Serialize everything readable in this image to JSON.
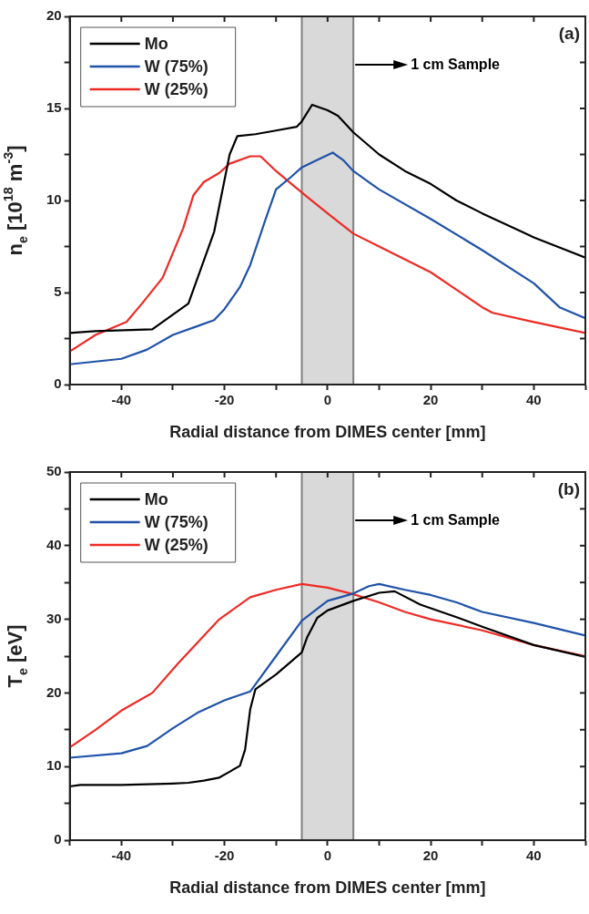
{
  "chart_data": [
    {
      "type": "line",
      "xlabel": "Radial distance from DIMES center [mm]",
      "ylabel": "n$_{e}$ [10$^{18}$ m$^{-3}$]",
      "annotations": [
        "(a)"
      ],
      "legend": "top left",
      "grid": false,
      "marker": "none",
      "line_style": "solid",
      "xlim": [
        -50,
        50
      ],
      "xticks": [
        {
          "value": -50,
          "label": null
        },
        -40,
        {
          "value": -30,
          "label": null
        },
        -20,
        {
          "value": -10,
          "label": null
        },
        0,
        {
          "value": 10,
          "label": null
        },
        20,
        {
          "value": 30,
          "label": null
        },
        40,
        {
          "value": 50,
          "label": null
        }
      ],
      "ylim": [
        0,
        20
      ],
      "yticks": [
        0,
        {
          "value": 2.5,
          "label": null
        },
        5,
        {
          "value": 7.5,
          "label": null
        },
        10,
        {
          "value": 12.5,
          "label": null
        },
        15,
        {
          "value": 17.5,
          "label": null
        },
        20
      ],
      "bands": [
        {
          "axis": "x",
          "from": -5,
          "to": 5,
          "label": "1 cm Sample",
          "color": "#808080"
        }
      ],
      "series": [
        {
          "name": "Mo",
          "color": "#000000",
          "x": [
            -50,
            -45,
            -34,
            -27,
            -22,
            -19,
            -17.5,
            -14,
            -10,
            -6,
            -5,
            -3,
            0,
            2,
            5,
            10,
            15,
            20,
            25,
            30,
            40,
            50
          ],
          "values": [
            2.8,
            2.9,
            3.0,
            4.4,
            8.3,
            12.5,
            13.5,
            13.6,
            13.8,
            14.0,
            14.3,
            15.2,
            14.9,
            14.6,
            13.7,
            12.5,
            11.6,
            10.9,
            10.0,
            9.3,
            8.0,
            6.9
          ]
        },
        {
          "name": "W (75%)",
          "color": "#1f52a8",
          "x": [
            -50,
            -40,
            -35,
            -30,
            -25,
            -22,
            -20,
            -17,
            -15,
            -12,
            -10,
            -7,
            -5,
            -2,
            1,
            3,
            5,
            8,
            10,
            20,
            30,
            40,
            45,
            50
          ],
          "values": [
            1.1,
            1.4,
            1.9,
            2.7,
            3.2,
            3.5,
            4.1,
            5.3,
            6.5,
            9.0,
            10.6,
            11.3,
            11.8,
            12.2,
            12.6,
            12.2,
            11.6,
            11.0,
            10.6,
            9.0,
            7.3,
            5.5,
            4.2,
            3.6
          ]
        },
        {
          "name": "W (25%)",
          "color": "#ee2a24",
          "x": [
            -50,
            -45,
            -39,
            -36,
            -32,
            -28,
            -26,
            -24,
            -21,
            -19,
            -15,
            -13,
            -10,
            -7,
            -4,
            0,
            5,
            10,
            20,
            30,
            32,
            40,
            50
          ],
          "values": [
            1.8,
            2.7,
            3.4,
            4.4,
            5.8,
            8.5,
            10.3,
            11.0,
            11.5,
            12.0,
            12.4,
            12.4,
            11.6,
            10.9,
            10.2,
            9.3,
            8.2,
            7.5,
            6.1,
            4.2,
            3.9,
            3.4,
            2.8
          ]
        }
      ]
    },
    {
      "type": "line",
      "xlabel": "Radial distance from DIMES center [mm]",
      "ylabel": "T$_{e}$ [eV]",
      "annotations": [
        "(b)"
      ],
      "legend": "top left",
      "grid": false,
      "marker": "none",
      "line_style": "solid",
      "xlim": [
        -50,
        50
      ],
      "xticks": [
        {
          "value": -50,
          "label": null
        },
        -40,
        {
          "value": -30,
          "label": null
        },
        -20,
        {
          "value": -10,
          "label": null
        },
        0,
        {
          "value": 10,
          "label": null
        },
        20,
        {
          "value": 30,
          "label": null
        },
        40,
        {
          "value": 50,
          "label": null
        }
      ],
      "ylim": [
        0,
        50
      ],
      "yticks": [
        0,
        {
          "value": 5,
          "label": null
        },
        10,
        {
          "value": 15,
          "label": null
        },
        20,
        {
          "value": 25,
          "label": null
        },
        30,
        {
          "value": 35,
          "label": null
        },
        40,
        {
          "value": 45,
          "label": null
        },
        50
      ],
      "bands": [
        {
          "axis": "x",
          "from": -5,
          "to": 5,
          "label": "1 cm Sample",
          "color": "#808080"
        }
      ],
      "series": [
        {
          "name": "Mo",
          "color": "#000000",
          "x": [
            -50,
            -48,
            -40,
            -30,
            -27,
            -24,
            -21,
            -19,
            -17,
            -16,
            -15,
            -14,
            -10,
            -7,
            -5,
            -4,
            -2,
            0,
            5,
            10,
            13,
            18,
            25,
            30,
            40,
            50
          ],
          "values": [
            7.3,
            7.5,
            7.5,
            7.7,
            7.8,
            8.1,
            8.5,
            9.3,
            10.1,
            12.3,
            17.8,
            20.5,
            22.5,
            24.3,
            25.5,
            27.5,
            30.2,
            31.2,
            32.5,
            33.6,
            33.8,
            32,
            30.3,
            29,
            26.5,
            24.9
          ]
        },
        {
          "name": "W (75%)",
          "color": "#1f52a8",
          "x": [
            -50,
            -40,
            -35,
            -30,
            -25,
            -20,
            -15,
            -10,
            -5,
            0,
            5,
            8,
            10,
            15,
            20,
            25,
            30,
            40,
            50
          ],
          "values": [
            11.2,
            11.8,
            12.8,
            15.2,
            17.4,
            19,
            20.2,
            25,
            29.8,
            32.5,
            33.5,
            34.5,
            34.8,
            34,
            33.3,
            32.3,
            31,
            29.5,
            27.8
          ]
        },
        {
          "name": "W (25%)",
          "color": "#ee2a24",
          "x": [
            -50,
            -45,
            -40,
            -34,
            -29,
            -25,
            -21,
            -15,
            -10,
            -5,
            0,
            5,
            10,
            15,
            20,
            30,
            40,
            50
          ],
          "values": [
            12.6,
            15,
            17.6,
            20,
            24,
            27,
            30,
            33,
            34,
            34.8,
            34.3,
            33.4,
            32.3,
            31,
            30,
            28.5,
            26.5,
            25
          ]
        }
      ]
    }
  ]
}
